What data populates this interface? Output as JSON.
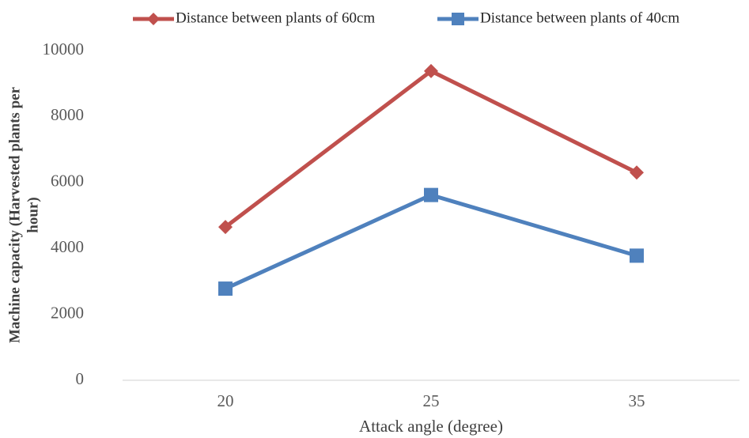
{
  "chart_data": {
    "type": "line",
    "categories": [
      "20",
      "25",
      "35"
    ],
    "series": [
      {
        "name": "Distance between plants of 60cm",
        "color": "#c0504d",
        "marker": "diamond",
        "values": [
          4650,
          9380,
          6300
        ]
      },
      {
        "name": "Distance between plants of 40cm",
        "color": "#4f81bd",
        "marker": "square",
        "values": [
          2780,
          5620,
          3780
        ]
      }
    ],
    "x_label": "Attack angle (degree)",
    "y_label_lines": [
      "Machine capacity (Harvested plants per",
      "hour)"
    ],
    "ylim": [
      0,
      10000
    ],
    "yticks": [
      0,
      2000,
      4000,
      6000,
      8000,
      10000
    ],
    "grid": false,
    "legend": "top"
  }
}
